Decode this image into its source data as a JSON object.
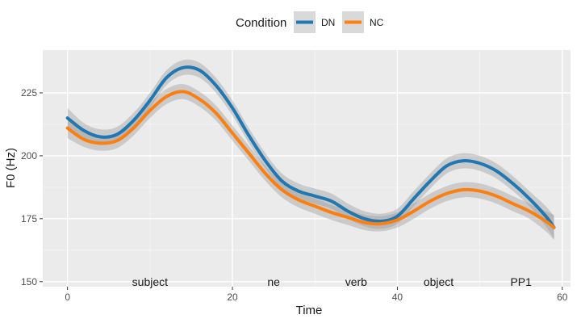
{
  "chart_data": {
    "type": "line",
    "title": "",
    "xlabel": "Time",
    "ylabel": "F0 (Hz)",
    "xlim": [
      -3,
      61
    ],
    "ylim": [
      148,
      242
    ],
    "x_ticks": [
      0,
      20,
      40,
      60
    ],
    "y_ticks": [
      150,
      175,
      200,
      225
    ],
    "grid": true,
    "legend": {
      "title": "Condition",
      "position": "top"
    },
    "annotations": [
      {
        "text": "subject",
        "x": 10,
        "y": 150
      },
      {
        "text": "ne",
        "x": 25,
        "y": 150
      },
      {
        "text": "verb",
        "x": 35,
        "y": 150
      },
      {
        "text": "object",
        "x": 45,
        "y": 150
      },
      {
        "text": "PP1",
        "x": 55,
        "y": 150
      }
    ],
    "series": [
      {
        "name": "DN",
        "color": "#1f77b4",
        "x": [
          0,
          2,
          4,
          6,
          8,
          10,
          12,
          14,
          16,
          18,
          20,
          22,
          24,
          26,
          28,
          30,
          32,
          34,
          36,
          38,
          40,
          42,
          44,
          46,
          48,
          50,
          52,
          54,
          56,
          58,
          59
        ],
        "y": [
          215,
          210,
          207.5,
          208.5,
          214,
          222,
          231,
          235,
          234,
          228,
          219,
          208,
          198,
          190,
          186,
          184,
          182,
          178,
          175,
          174,
          176,
          183,
          190,
          196,
          198,
          197,
          194,
          189,
          183,
          176,
          171.5
        ],
        "ci_halfwidth": [
          4,
          3,
          3,
          3,
          3,
          3,
          3,
          3,
          3,
          3,
          3,
          3,
          3,
          3,
          3,
          3,
          3,
          3,
          3,
          3,
          3,
          3,
          3,
          3,
          3,
          3,
          3,
          3,
          3,
          4,
          4.5
        ]
      },
      {
        "name": "NC",
        "color": "#ff7f0e",
        "x": [
          0,
          2,
          4,
          6,
          8,
          10,
          12,
          14,
          16,
          18,
          20,
          22,
          24,
          26,
          28,
          30,
          32,
          34,
          36,
          38,
          40,
          42,
          44,
          46,
          48,
          50,
          52,
          54,
          56,
          58,
          59
        ],
        "y": [
          211,
          206.5,
          205,
          206,
          211,
          218,
          223.5,
          225.5,
          222.5,
          217,
          209,
          201,
          193,
          186.5,
          182.5,
          180,
          177.5,
          175.5,
          173.5,
          173,
          174.5,
          178,
          182,
          185,
          186.5,
          186,
          184,
          181,
          178,
          174,
          171.5
        ],
        "ci_halfwidth": [
          4,
          3,
          3,
          3,
          3,
          3,
          3,
          3,
          3,
          3,
          3,
          3,
          3,
          3,
          3,
          3,
          3,
          3,
          3,
          3,
          3,
          3,
          3,
          3,
          3,
          3,
          3,
          3,
          3,
          4,
          5
        ]
      }
    ]
  }
}
